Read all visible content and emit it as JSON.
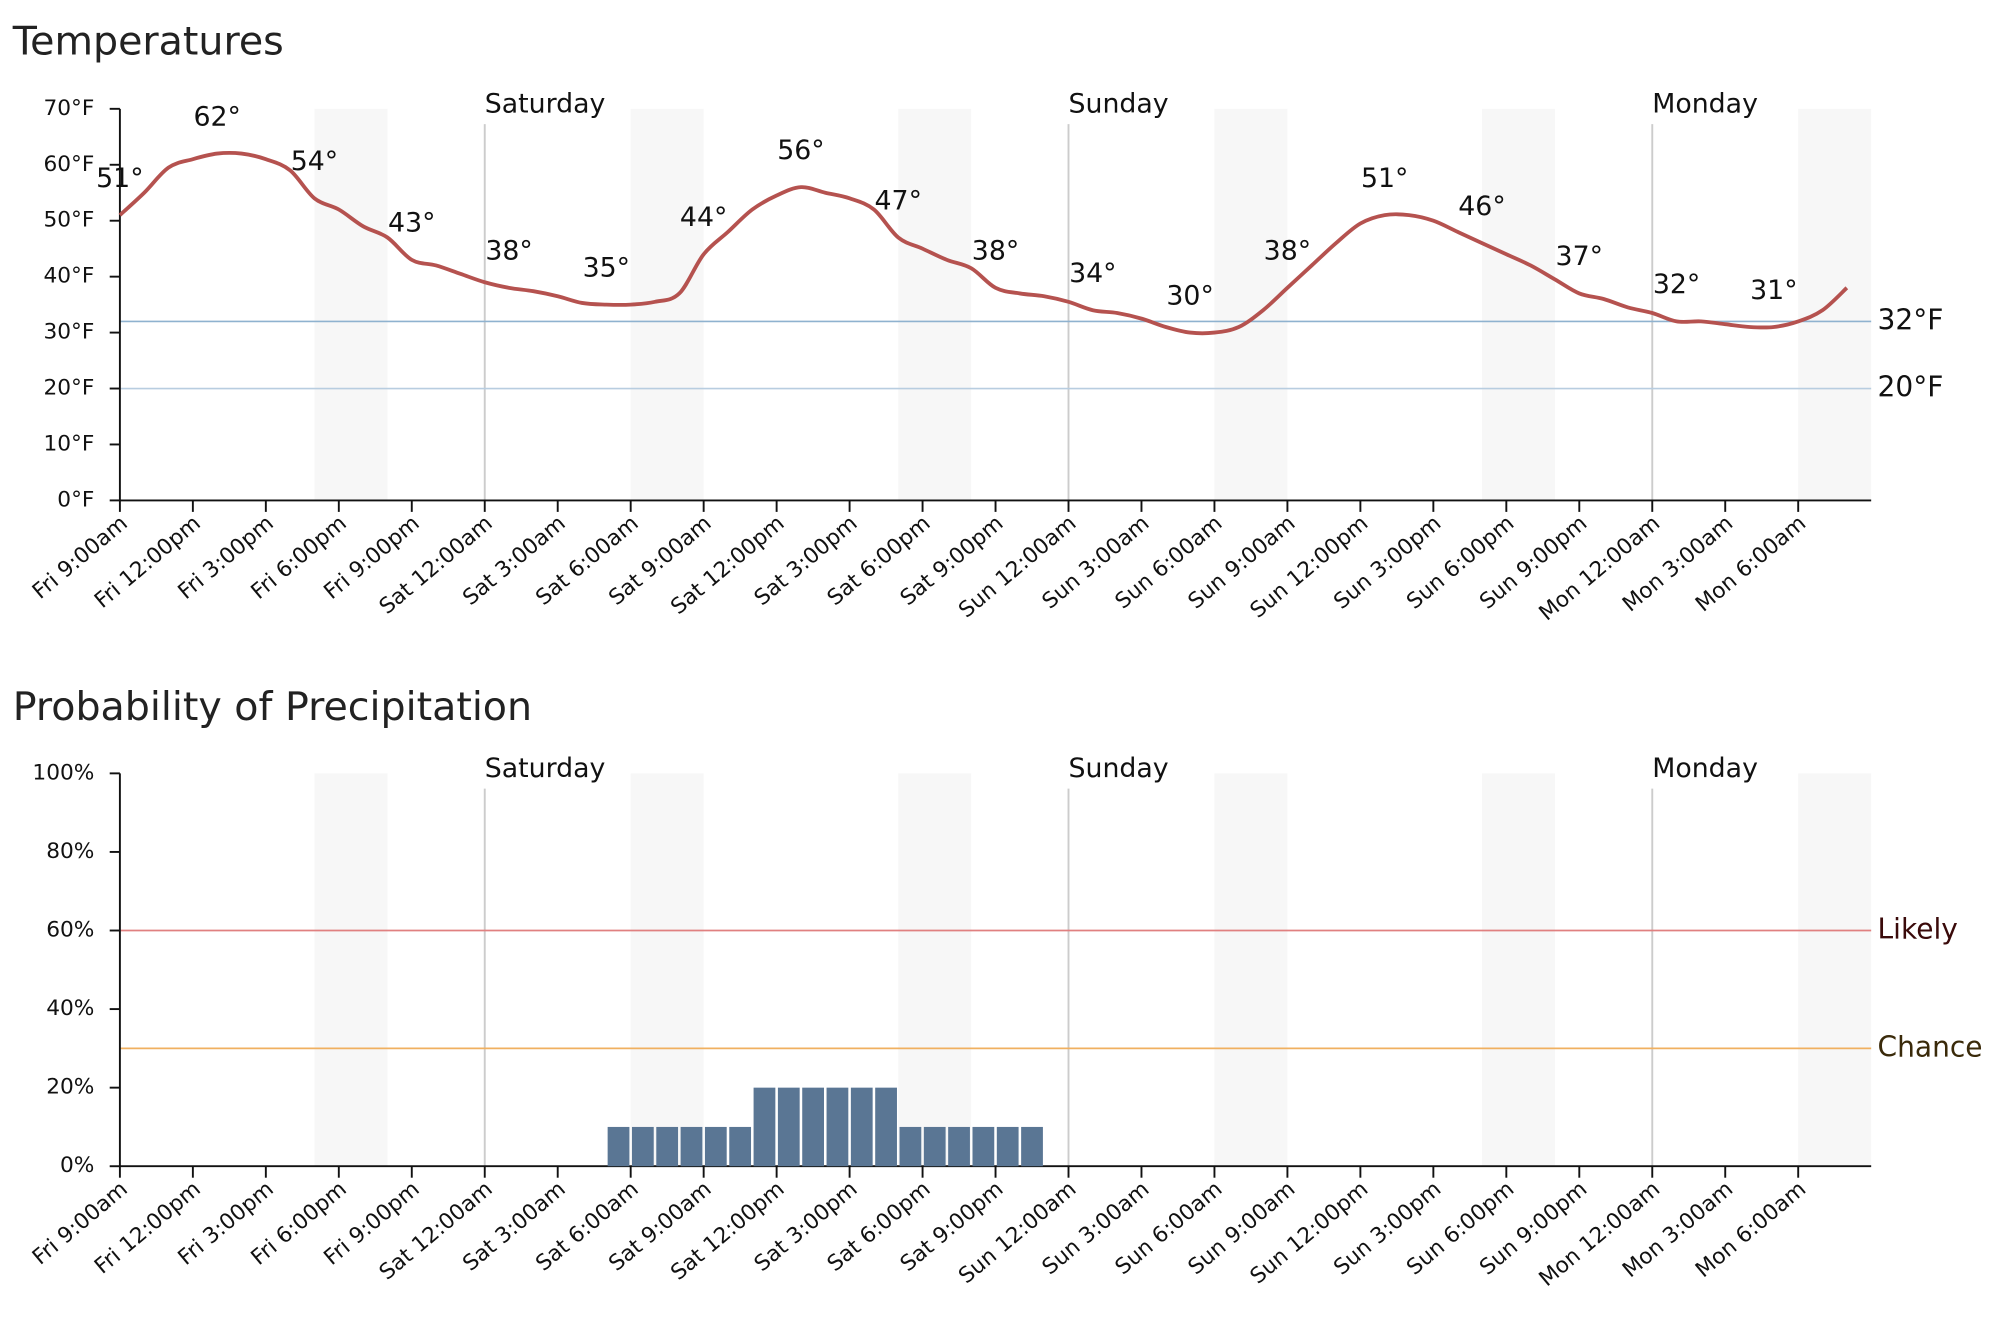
{
  "chart_data": [
    {
      "type": "line",
      "title": "Temperatures",
      "categories": [
        "Fri 9:00am",
        null,
        null,
        "Fri 12:00pm",
        null,
        null,
        "Fri 3:00pm",
        null,
        null,
        "Fri 6:00pm",
        null,
        null,
        "Fri 9:00pm",
        null,
        null,
        "Sat 12:00am",
        null,
        null,
        "Sat 3:00am",
        null,
        null,
        "Sat 6:00am",
        null,
        null,
        "Sat 9:00am",
        null,
        null,
        "Sat 12:00pm",
        null,
        null,
        "Sat 3:00pm",
        null,
        null,
        "Sat 6:00pm",
        null,
        null,
        "Sat 9:00pm",
        null,
        null,
        "Sun 12:00am",
        null,
        null,
        "Sun 3:00am",
        null,
        null,
        "Sun 6:00am",
        null,
        null,
        "Sun 9:00am",
        null,
        null,
        "Sun 12:00pm",
        null,
        null,
        "Sun 3:00pm",
        null,
        null,
        "Sun 6:00pm",
        null,
        null,
        "Sun 9:00pm",
        null,
        null,
        "Mon 12:00am",
        null,
        null,
        "Mon 3:00am",
        null,
        null,
        "Mon 6:00am",
        null,
        null
      ],
      "values": [
        51,
        55,
        59.5,
        61,
        62,
        62,
        61,
        59,
        54,
        52,
        49,
        47,
        43,
        42,
        40.5,
        39,
        38,
        37.4,
        36.5,
        35.3,
        35,
        35,
        35.5,
        37,
        44,
        48,
        52,
        54.5,
        56,
        55,
        54,
        52,
        47,
        45,
        43,
        41.5,
        38,
        37,
        36.5,
        35.5,
        34,
        33.5,
        32.5,
        31,
        30,
        30,
        31,
        34,
        38,
        42,
        46,
        49.5,
        51,
        51,
        50,
        48,
        46,
        44,
        42,
        39.5,
        37,
        36,
        34.5,
        33.5,
        32,
        32,
        31.5,
        31,
        31,
        32,
        34,
        38
      ],
      "value_labels": [
        "51°",
        null,
        null,
        null,
        "62°",
        null,
        null,
        null,
        "54°",
        null,
        null,
        null,
        "43°",
        null,
        null,
        null,
        "38°",
        null,
        null,
        null,
        "35°",
        null,
        null,
        null,
        "44°",
        null,
        null,
        null,
        "56°",
        null,
        null,
        null,
        "47°",
        null,
        null,
        null,
        "38°",
        null,
        null,
        null,
        "34°",
        null,
        null,
        null,
        "30°",
        null,
        null,
        null,
        "38°",
        null,
        null,
        null,
        "51°",
        null,
        null,
        null,
        "46°",
        null,
        null,
        null,
        "37°",
        null,
        null,
        null,
        "32°",
        null,
        null,
        null,
        "31°",
        null,
        null,
        null
      ],
      "color": "#b5524f",
      "ylim": [
        0,
        70
      ],
      "yticks": [
        {
          "value": 0,
          "label": "0°F"
        },
        {
          "value": 10,
          "label": "10°F"
        },
        {
          "value": 20,
          "label": "20°F"
        },
        {
          "value": 30,
          "label": "30°F"
        },
        {
          "value": 40,
          "label": "40°F"
        },
        {
          "value": 50,
          "label": "50°F"
        },
        {
          "value": 60,
          "label": "60°F"
        },
        {
          "value": 70,
          "label": "70°F"
        }
      ],
      "reference_lines": [
        {
          "value": 32,
          "label": "32°F",
          "color": "#8fb2cf"
        },
        {
          "value": 20,
          "label": "20°F",
          "color": "#b8cde0"
        }
      ],
      "day_lines": [
        {
          "x": 15,
          "label": "Saturday"
        },
        {
          "x": 39,
          "label": "Sunday"
        },
        {
          "x": 63,
          "label": "Monday"
        }
      ],
      "shaded_ranges": [
        [
          8,
          11
        ],
        [
          21,
          24
        ],
        [
          32,
          35
        ],
        [
          45,
          48
        ],
        [
          56,
          59
        ],
        [
          69,
          72
        ]
      ]
    },
    {
      "type": "bar",
      "title": "Probability of Precipitation",
      "categories": [
        "Fri 9:00am",
        null,
        null,
        "Fri 12:00pm",
        null,
        null,
        "Fri 3:00pm",
        null,
        null,
        "Fri 6:00pm",
        null,
        null,
        "Fri 9:00pm",
        null,
        null,
        "Sat 12:00am",
        null,
        null,
        "Sat 3:00am",
        null,
        null,
        "Sat 6:00am",
        null,
        null,
        "Sat 9:00am",
        null,
        null,
        "Sat 12:00pm",
        null,
        null,
        "Sat 3:00pm",
        null,
        null,
        "Sat 6:00pm",
        null,
        null,
        "Sat 9:00pm",
        null,
        null,
        "Sun 12:00am",
        null,
        null,
        "Sun 3:00am",
        null,
        null,
        "Sun 6:00am",
        null,
        null,
        "Sun 9:00am",
        null,
        null,
        "Sun 12:00pm",
        null,
        null,
        "Sun 3:00pm",
        null,
        null,
        "Sun 6:00pm",
        null,
        null,
        "Sun 9:00pm",
        null,
        null,
        "Mon 12:00am",
        null,
        null,
        "Mon 3:00am",
        null,
        null,
        "Mon 6:00am",
        null,
        null
      ],
      "values": [
        0,
        0,
        0,
        0,
        0,
        0,
        0,
        0,
        0,
        0,
        0,
        0,
        0,
        0,
        0,
        0,
        0,
        0,
        0,
        0,
        10,
        10,
        10,
        10,
        10,
        10,
        20,
        20,
        20,
        20,
        20,
        20,
        10,
        10,
        10,
        10,
        10,
        10,
        0,
        0,
        0,
        0,
        0,
        0,
        0,
        0,
        0,
        0,
        0,
        0,
        0,
        0,
        0,
        0,
        0,
        0,
        0,
        0,
        0,
        0,
        0,
        0,
        0,
        0,
        0,
        0,
        0,
        0,
        0,
        0,
        0,
        0
      ],
      "color": "#5a7694",
      "ylim": [
        0,
        100
      ],
      "yticks": [
        {
          "value": 0,
          "label": "0%"
        },
        {
          "value": 20,
          "label": "20%"
        },
        {
          "value": 40,
          "label": "40%"
        },
        {
          "value": 60,
          "label": "60%"
        },
        {
          "value": 80,
          "label": "80%"
        },
        {
          "value": 100,
          "label": "100%"
        }
      ],
      "reference_lines": [
        {
          "value": 60,
          "label": "Likely",
          "color": "#e08080",
          "text_color": "#3a0a0a"
        },
        {
          "value": 30,
          "label": "Chance",
          "color": "#f0b060",
          "text_color": "#3a2a0a"
        }
      ],
      "day_lines": [
        {
          "x": 15,
          "label": "Saturday"
        },
        {
          "x": 39,
          "label": "Sunday"
        },
        {
          "x": 63,
          "label": "Monday"
        }
      ],
      "shaded_ranges": [
        [
          8,
          11
        ],
        [
          21,
          24
        ],
        [
          32,
          35
        ],
        [
          45,
          48
        ],
        [
          56,
          59
        ],
        [
          69,
          72
        ]
      ]
    }
  ]
}
